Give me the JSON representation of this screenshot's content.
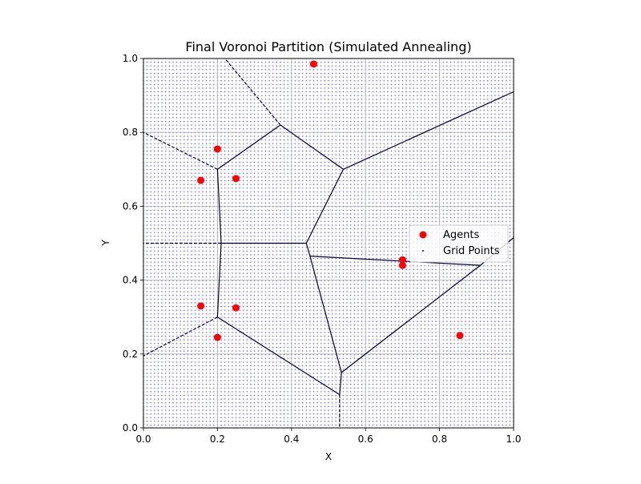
{
  "chart_data": {
    "type": "scatter",
    "title": "Final Voronoi Partition (Simulated Annealing)",
    "xlabel": "X",
    "ylabel": "Y",
    "xlim": [
      0,
      1
    ],
    "ylim": [
      0,
      1
    ],
    "xticks": [
      "0.0",
      "0.2",
      "0.4",
      "0.6",
      "0.8",
      "1.0"
    ],
    "yticks": [
      "0.0",
      "0.2",
      "0.4",
      "0.6",
      "0.8",
      "1.0"
    ],
    "grid": true,
    "legend": {
      "placement": "right",
      "entries": [
        "Agents",
        "Grid Points"
      ]
    },
    "series": [
      {
        "name": "Agents",
        "color": "#ff0000",
        "points": [
          [
            0.46,
            0.985
          ],
          [
            0.2,
            0.755
          ],
          [
            0.155,
            0.67
          ],
          [
            0.25,
            0.675
          ],
          [
            0.155,
            0.33
          ],
          [
            0.25,
            0.325
          ],
          [
            0.2,
            0.245
          ],
          [
            0.7,
            0.455
          ],
          [
            0.7,
            0.44
          ],
          [
            0.855,
            0.25
          ]
        ]
      },
      {
        "name": "Grid Points",
        "color": "#0000cc",
        "grid_step": 0.01,
        "range": [
          0,
          1
        ]
      }
    ],
    "voronoi": {
      "color": "#000033",
      "solid_edges": [
        [
          [
            0.37,
            0.82
          ],
          [
            0.2,
            0.7
          ]
        ],
        [
          [
            0.37,
            0.82
          ],
          [
            0.54,
            0.7
          ]
        ],
        [
          [
            0.54,
            0.7
          ],
          [
            0.44,
            0.5
          ]
        ],
        [
          [
            0.54,
            0.7
          ],
          [
            1.0,
            0.91
          ]
        ],
        [
          [
            0.2,
            0.7
          ],
          [
            0.21,
            0.5
          ]
        ],
        [
          [
            0.21,
            0.5
          ],
          [
            0.44,
            0.5
          ]
        ],
        [
          [
            0.44,
            0.5
          ],
          [
            0.45,
            0.465
          ]
        ],
        [
          [
            0.45,
            0.465
          ],
          [
            0.91,
            0.44
          ]
        ],
        [
          [
            0.91,
            0.44
          ],
          [
            1.0,
            0.515
          ]
        ],
        [
          [
            0.91,
            0.44
          ],
          [
            0.535,
            0.15
          ]
        ],
        [
          [
            0.45,
            0.465
          ],
          [
            0.535,
            0.15
          ]
        ],
        [
          [
            0.535,
            0.15
          ],
          [
            0.53,
            0.09
          ]
        ],
        [
          [
            0.53,
            0.09
          ],
          [
            0.2,
            0.3
          ]
        ],
        [
          [
            0.2,
            0.3
          ],
          [
            0.21,
            0.5
          ]
        ]
      ],
      "dashed_edges": [
        [
          [
            0.37,
            0.82
          ],
          [
            0.22,
            1.0
          ]
        ],
        [
          [
            0.2,
            0.7
          ],
          [
            0.0,
            0.8
          ]
        ],
        [
          [
            0.21,
            0.5
          ],
          [
            0.0,
            0.5
          ]
        ],
        [
          [
            0.2,
            0.3
          ],
          [
            0.0,
            0.195
          ]
        ],
        [
          [
            0.53,
            0.09
          ],
          [
            0.53,
            0.0
          ]
        ]
      ]
    }
  }
}
